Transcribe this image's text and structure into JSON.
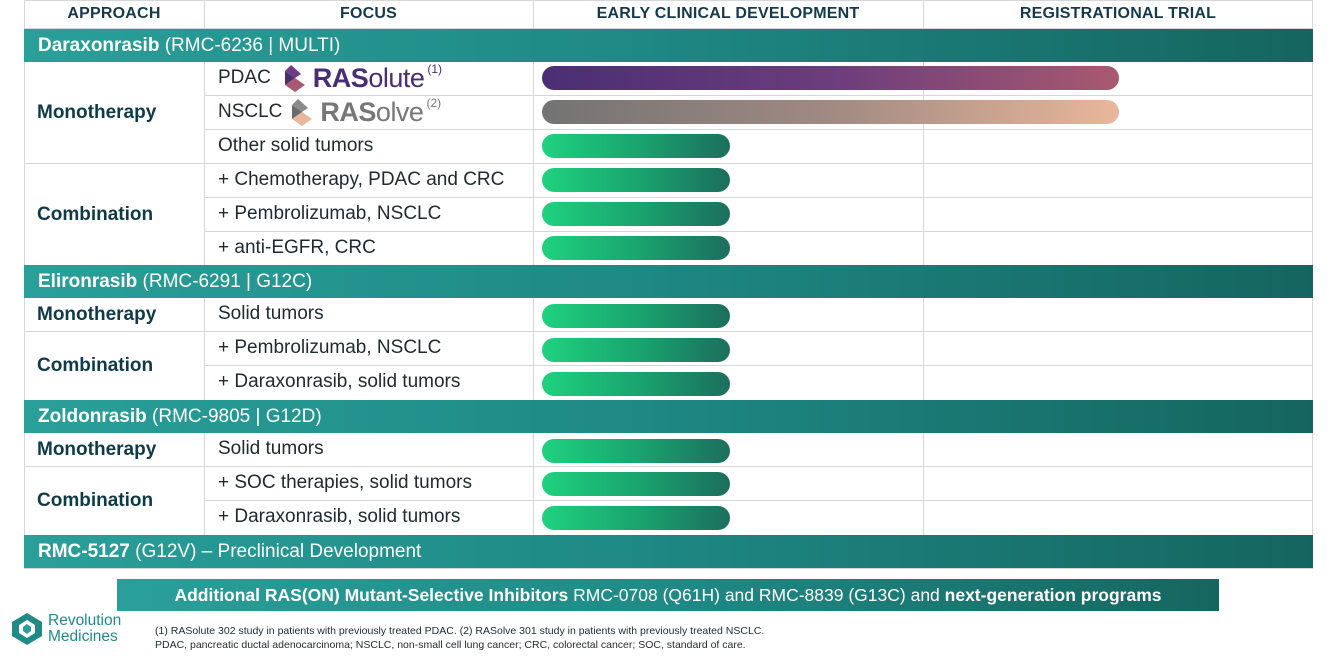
{
  "headers": {
    "approach": "APPROACH",
    "focus": "FOCUS",
    "early": "EARLY CLINICAL DEVELOPMENT",
    "registrational": "REGISTRATIONAL TRIAL"
  },
  "programs": {
    "daraxonrasib": {
      "name": "Daraxonrasib",
      "detail": "(RMC-6236 | MULTI)"
    },
    "elironrasib": {
      "name": "Elironrasib",
      "detail": "(RMC-6291 | G12C)"
    },
    "zoldonrasib": {
      "name": "Zoldonrasib",
      "detail": "(RMC-9805 | G12D)"
    },
    "rmc5127": {
      "name": "RMC-5127",
      "detail": "(G12V) – Preclinical Development"
    }
  },
  "approaches": {
    "mono": "Monotherapy",
    "combo": "Combination"
  },
  "focus": {
    "d_pdac": "PDAC",
    "d_nsclc": "NSCLC",
    "d_other": "Other solid tumors",
    "d_chemo": "+ Chemotherapy, PDAC and CRC",
    "d_pembro": "+ Pembrolizumab,  NSCLC",
    "d_egfr": "+ anti-EGFR, CRC",
    "e_solid": "Solid tumors",
    "e_pembro": "+ Pembrolizumab, NSCLC",
    "e_darax": "+ Daraxonrasib, solid tumors",
    "z_solid": "Solid tumors",
    "z_soc": "+ SOC therapies, solid tumors",
    "z_darax": "+ Daraxonrasib, solid tumors"
  },
  "trials": {
    "rasolute": {
      "bold": "RAS",
      "rest": "olute",
      "note": "(1)"
    },
    "rasolve": {
      "bold": "RAS",
      "rest": "olve",
      "note": "(2)"
    }
  },
  "bottom_banner": {
    "part1": "Additional RAS(ON) Mutant-Selective Inhibitors",
    "part2": " RMC-0708 (Q61H) and RMC-8839 (G13C) and ",
    "part3": "next-generation programs"
  },
  "company": {
    "line1": "Revolution",
    "line2": "Medicines"
  },
  "footnotes": {
    "line1": "(1) RASolute 302 study in patients with previously treated PDAC. (2) RASolve 301 study in patients with previously treated NSCLC.",
    "line2": "PDAC, pancreatic ductal adenocarcinoma; NSCLC, non-small cell lung cancer; CRC, colorectal cancer; SOC, standard of care."
  },
  "colors": {
    "teal": "#1f8a86",
    "green_bar": "#1fd17f",
    "purple_bar": "#4a2e74",
    "tan_bar": "#e9b79b",
    "heading_navy": "#0f3b47"
  }
}
